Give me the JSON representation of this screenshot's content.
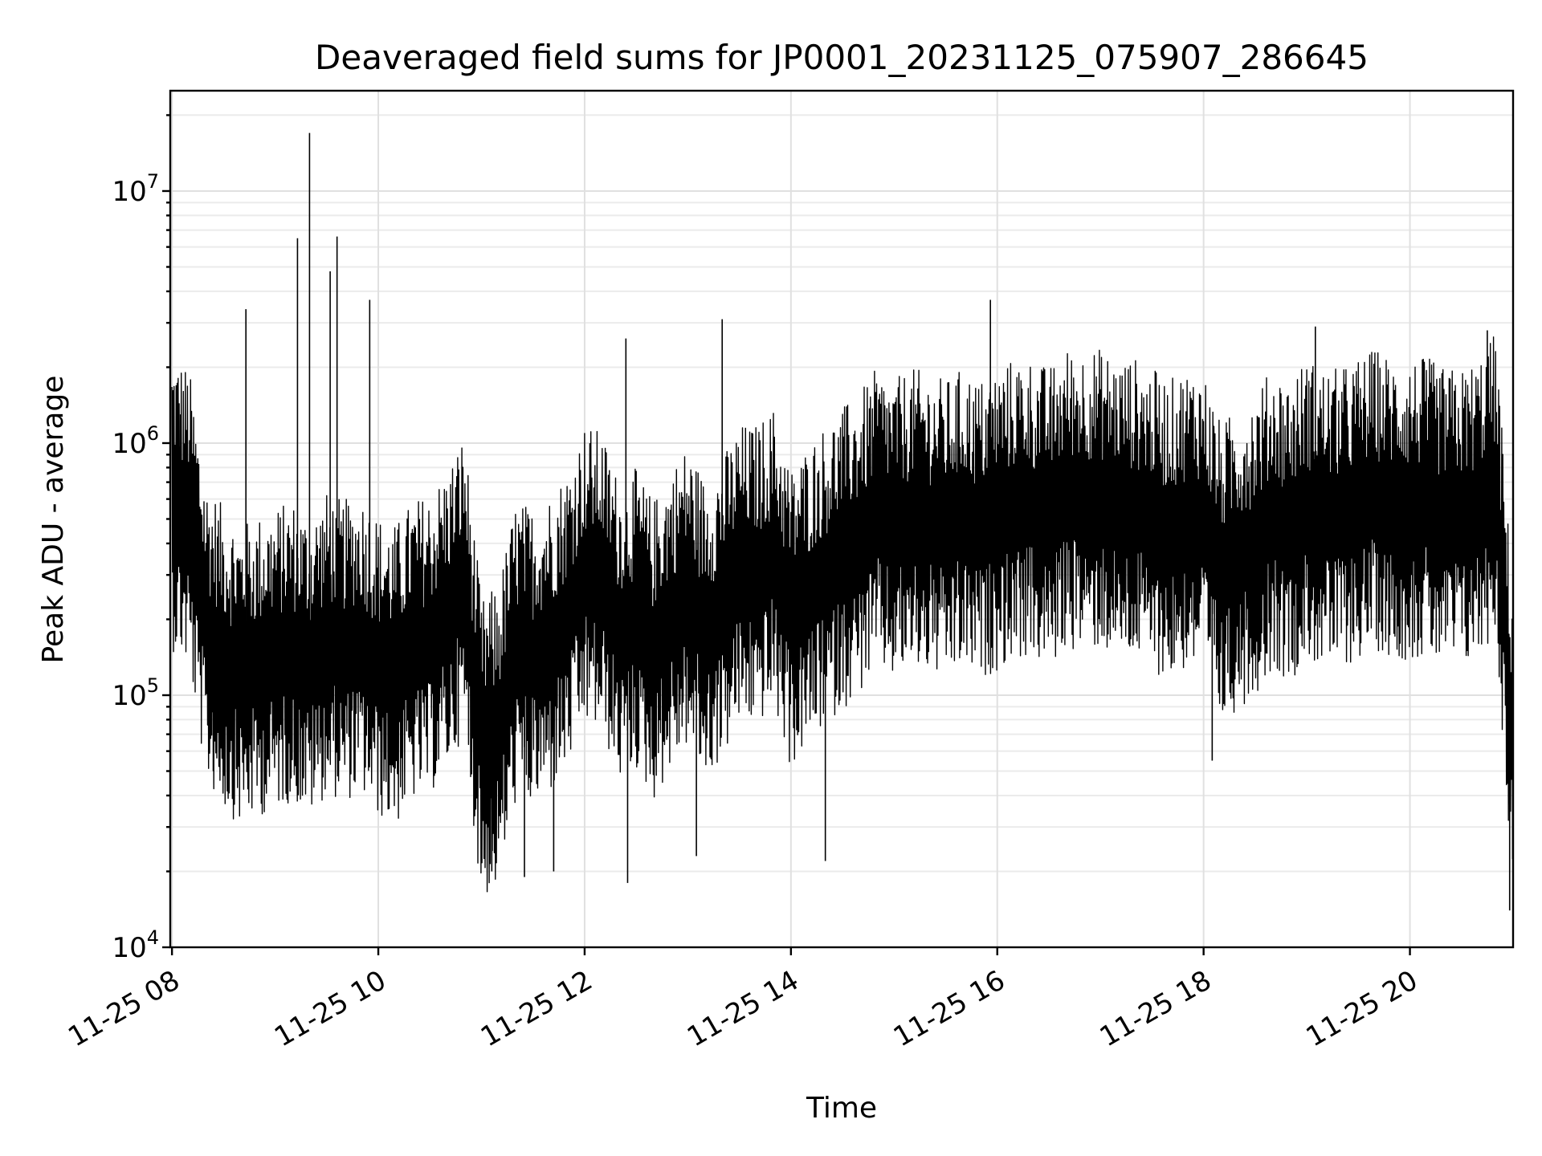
{
  "chart_data": {
    "type": "line",
    "title": "Deaveraged field sums for JP0001_20231125_075907_286645",
    "xlabel": "Time",
    "ylabel": "Peak ADU - average",
    "yscale": "log",
    "ylim": [
      10000,
      25000000
    ],
    "xlim": [
      "2023-11-25T07:59:00",
      "2023-11-25T21:00:00"
    ],
    "grid": true,
    "line_color": "#000000",
    "x_ticks": [
      "11-25 08",
      "11-25 10",
      "11-25 12",
      "11-25 14",
      "11-25 16",
      "11-25 18",
      "11-25 20"
    ],
    "y_ticks": [
      {
        "base": "10",
        "exp": "4",
        "value": 10000
      },
      {
        "base": "10",
        "exp": "5",
        "value": 100000
      },
      {
        "base": "10",
        "exp": "6",
        "value": 1000000
      },
      {
        "base": "10",
        "exp": "7",
        "value": 10000000
      }
    ],
    "series": [
      {
        "x": [
          "2023-11-25T08:00",
          "2023-11-25T08:10",
          "2023-11-25T08:20",
          "2023-11-25T08:30",
          "2023-11-25T08:40",
          "2023-11-25T08:50",
          "2023-11-25T09:00",
          "2023-11-25T09:10",
          "2023-11-25T09:20",
          "2023-11-25T09:30",
          "2023-11-25T09:40",
          "2023-11-25T09:50",
          "2023-11-25T10:00",
          "2023-11-25T10:10",
          "2023-11-25T10:20",
          "2023-11-25T10:30",
          "2023-11-25T10:40",
          "2023-11-25T10:50",
          "2023-11-25T11:00",
          "2023-11-25T11:10",
          "2023-11-25T11:20",
          "2023-11-25T11:30",
          "2023-11-25T11:40",
          "2023-11-25T11:50",
          "2023-11-25T12:00",
          "2023-11-25T12:10",
          "2023-11-25T12:20",
          "2023-11-25T12:30",
          "2023-11-25T12:40",
          "2023-11-25T12:50",
          "2023-11-25T13:00",
          "2023-11-25T13:10",
          "2023-11-25T13:20",
          "2023-11-25T13:30",
          "2023-11-25T13:40",
          "2023-11-25T13:50",
          "2023-11-25T14:00",
          "2023-11-25T14:10",
          "2023-11-25T14:20",
          "2023-11-25T14:30",
          "2023-11-25T14:40",
          "2023-11-25T14:50",
          "2023-11-25T15:00",
          "2023-11-25T15:10",
          "2023-11-25T15:20",
          "2023-11-25T15:30",
          "2023-11-25T15:40",
          "2023-11-25T15:50",
          "2023-11-25T16:00",
          "2023-11-25T16:10",
          "2023-11-25T16:20",
          "2023-11-25T16:30",
          "2023-11-25T16:40",
          "2023-11-25T16:50",
          "2023-11-25T17:00",
          "2023-11-25T17:10",
          "2023-11-25T17:20",
          "2023-11-25T17:30",
          "2023-11-25T17:40",
          "2023-11-25T17:50",
          "2023-11-25T18:00",
          "2023-11-25T18:10",
          "2023-11-25T18:20",
          "2023-11-25T18:30",
          "2023-11-25T18:40",
          "2023-11-25T18:50",
          "2023-11-25T19:00",
          "2023-11-25T19:10",
          "2023-11-25T19:20",
          "2023-11-25T19:30",
          "2023-11-25T19:40",
          "2023-11-25T19:50",
          "2023-11-25T20:00",
          "2023-11-25T20:10",
          "2023-11-25T20:20",
          "2023-11-25T20:30",
          "2023-11-25T20:40",
          "2023-11-25T20:50",
          "2023-11-25T21:00"
        ],
        "values": [
          600000,
          500000,
          180000,
          140000,
          120000,
          130000,
          140000,
          150000,
          130000,
          160000,
          150000,
          160000,
          130000,
          120000,
          150000,
          160000,
          200000,
          280000,
          60000,
          70000,
          150000,
          140000,
          160000,
          200000,
          300000,
          280000,
          180000,
          200000,
          150000,
          200000,
          250000,
          180000,
          220000,
          300000,
          300000,
          350000,
          200000,
          250000,
          300000,
          350000,
          400000,
          500000,
          450000,
          500000,
          480000,
          450000,
          500000,
          450000,
          500000,
          550000,
          550000,
          500000,
          600000,
          600000,
          600000,
          550000,
          550000,
          500000,
          450000,
          500000,
          500000,
          300000,
          350000,
          400000,
          500000,
          450000,
          550000,
          500000,
          500000,
          550000,
          600000,
          550000,
          550000,
          550000,
          500000,
          500000,
          550000,
          700000,
          60000
        ],
        "spikes": [
          {
            "x": "2023-11-25T08:05",
            "value": 1300000
          },
          {
            "x": "2023-11-25T08:24",
            "value": 50000
          },
          {
            "x": "2023-11-25T08:43",
            "value": 3400000
          },
          {
            "x": "2023-11-25T09:13",
            "value": 6500000
          },
          {
            "x": "2023-11-25T09:20",
            "value": 17000000
          },
          {
            "x": "2023-11-25T09:32",
            "value": 4800000
          },
          {
            "x": "2023-11-25T09:36",
            "value": 6600000
          },
          {
            "x": "2023-11-25T09:55",
            "value": 3700000
          },
          {
            "x": "2023-11-25T11:06",
            "value": 20000
          },
          {
            "x": "2023-11-25T11:25",
            "value": 19000
          },
          {
            "x": "2023-11-25T11:42",
            "value": 20000
          },
          {
            "x": "2023-11-25T12:25",
            "value": 18000
          },
          {
            "x": "2023-11-25T12:24",
            "value": 2600000
          },
          {
            "x": "2023-11-25T13:05",
            "value": 23000
          },
          {
            "x": "2023-11-25T13:20",
            "value": 3100000
          },
          {
            "x": "2023-11-25T14:20",
            "value": 22000
          },
          {
            "x": "2023-11-25T15:56",
            "value": 3700000
          },
          {
            "x": "2023-11-25T18:05",
            "value": 55000
          },
          {
            "x": "2023-11-25T19:05",
            "value": 2900000
          },
          {
            "x": "2023-11-25T20:45",
            "value": 2800000
          },
          {
            "x": "2023-11-25T20:58",
            "value": 14000
          }
        ]
      }
    ]
  }
}
